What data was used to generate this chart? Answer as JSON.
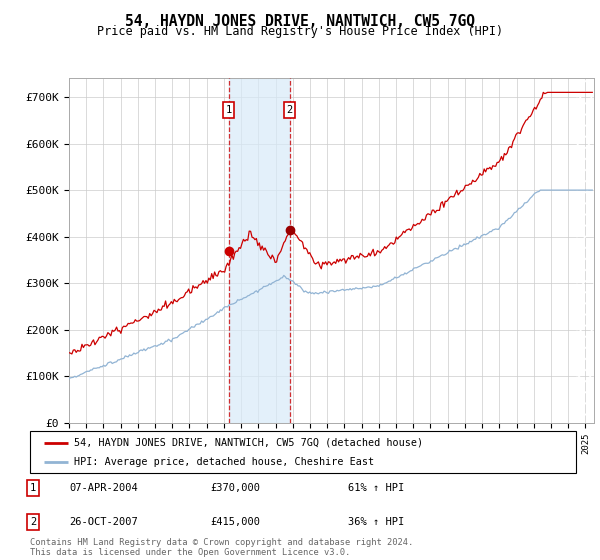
{
  "title": "54, HAYDN JONES DRIVE, NANTWICH, CW5 7GQ",
  "subtitle": "Price paid vs. HM Land Registry's House Price Index (HPI)",
  "transactions": [
    {
      "date": 2004.27,
      "price": 370000,
      "label": "1"
    },
    {
      "date": 2007.82,
      "price": 415000,
      "label": "2"
    }
  ],
  "transaction_info": [
    {
      "num": "1",
      "date": "07-APR-2004",
      "price": "£370,000",
      "hpi": "61% ↑ HPI"
    },
    {
      "num": "2",
      "date": "26-OCT-2007",
      "price": "£415,000",
      "hpi": "36% ↑ HPI"
    }
  ],
  "legend_house": "54, HAYDN JONES DRIVE, NANTWICH, CW5 7GQ (detached house)",
  "legend_hpi": "HPI: Average price, detached house, Cheshire East",
  "footer": "Contains HM Land Registry data © Crown copyright and database right 2024.\nThis data is licensed under the Open Government Licence v3.0.",
  "house_color": "#cc0000",
  "hpi_color": "#92b4d4",
  "y_ticks": [
    0,
    100000,
    200000,
    300000,
    400000,
    500000,
    600000,
    700000
  ],
  "y_labels": [
    "£0",
    "£100K",
    "£200K",
    "£300K",
    "£400K",
    "£500K",
    "£600K",
    "£700K"
  ],
  "shade_x1": 2004.27,
  "shade_x2": 2007.82,
  "xmin": 1995.0,
  "xmax": 2025.5,
  "hatch_start": 2024.5
}
